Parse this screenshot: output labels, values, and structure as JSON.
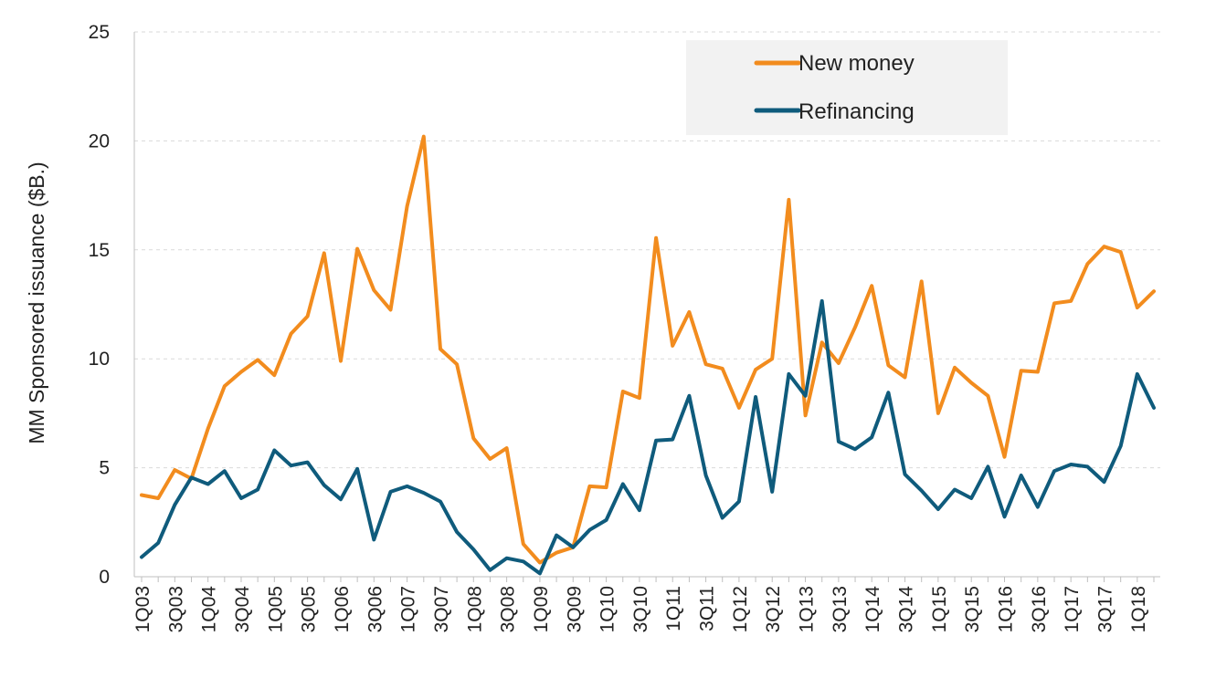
{
  "chart_data": {
    "type": "line",
    "title": "",
    "xlabel": "",
    "ylabel": "MM Sponsored issuance ($B.)",
    "ylim": [
      0,
      25
    ],
    "yticks": [
      0,
      5,
      10,
      15,
      20,
      25
    ],
    "grid": true,
    "legend_position": "top-right",
    "x": [
      "1Q03",
      "2Q03",
      "3Q03",
      "4Q03",
      "1Q04",
      "2Q04",
      "3Q04",
      "4Q04",
      "1Q05",
      "2Q05",
      "3Q05",
      "4Q05",
      "1Q06",
      "2Q06",
      "3Q06",
      "4Q06",
      "1Q07",
      "2Q07",
      "3Q07",
      "4Q07",
      "1Q08",
      "2Q08",
      "3Q08",
      "4Q08",
      "1Q09",
      "2Q09",
      "3Q09",
      "4Q09",
      "1Q10",
      "2Q10",
      "3Q10",
      "4Q10",
      "1Q11",
      "2Q11",
      "3Q11",
      "4Q11",
      "1Q12",
      "2Q12",
      "3Q12",
      "4Q12",
      "1Q13",
      "2Q13",
      "3Q13",
      "4Q13",
      "1Q14",
      "2Q14",
      "3Q14",
      "4Q14",
      "1Q15",
      "2Q15",
      "3Q15",
      "4Q15",
      "1Q16",
      "2Q16",
      "3Q16",
      "4Q16",
      "1Q17",
      "2Q17",
      "3Q17",
      "4Q17",
      "1Q18",
      "2Q18"
    ],
    "x_tick_labels_shown": [
      "1Q03",
      "3Q03",
      "1Q04",
      "3Q04",
      "1Q05",
      "3Q05",
      "1Q06",
      "3Q06",
      "1Q07",
      "3Q07",
      "1Q08",
      "3Q08",
      "1Q09",
      "3Q09",
      "1Q10",
      "3Q10",
      "1Q11",
      "3Q11",
      "1Q12",
      "3Q12",
      "1Q13",
      "3Q13",
      "1Q14",
      "3Q14",
      "1Q15",
      "3Q15",
      "1Q16",
      "3Q16",
      "1Q17",
      "3Q17",
      "1Q18"
    ],
    "series": [
      {
        "name": "New money",
        "color": "#F28C1E",
        "values": [
          3.75,
          3.6,
          4.9,
          4.5,
          6.8,
          8.75,
          9.4,
          9.95,
          9.25,
          11.15,
          11.95,
          14.85,
          9.9,
          15.05,
          13.15,
          12.25,
          17.0,
          20.2,
          10.45,
          9.75,
          6.35,
          5.4,
          5.9,
          1.5,
          0.65,
          1.1,
          1.35,
          4.15,
          4.1,
          8.5,
          8.2,
          15.55,
          10.6,
          12.15,
          9.75,
          9.55,
          7.75,
          9.5,
          10.0,
          17.3,
          7.4,
          10.75,
          9.8,
          11.45,
          13.35,
          9.7,
          9.15,
          13.55,
          7.5,
          9.6,
          8.9,
          8.3,
          5.5,
          9.45,
          9.4,
          12.55,
          12.65,
          14.35,
          15.15,
          14.9,
          12.35,
          13.1
        ]
      },
      {
        "name": "Refinancing",
        "color": "#0F5B7C",
        "values": [
          0.9,
          1.55,
          3.3,
          4.55,
          4.25,
          4.85,
          3.6,
          4.0,
          5.8,
          5.1,
          5.25,
          4.2,
          3.55,
          4.95,
          1.7,
          3.9,
          4.15,
          3.85,
          3.45,
          2.05,
          1.25,
          0.3,
          0.85,
          0.7,
          0.15,
          1.9,
          1.35,
          2.15,
          2.6,
          4.25,
          3.05,
          6.25,
          6.3,
          8.3,
          4.65,
          2.7,
          3.45,
          8.25,
          3.9,
          9.3,
          8.3,
          12.65,
          6.2,
          5.85,
          6.4,
          8.45,
          4.7,
          3.95,
          3.1,
          4.0,
          3.6,
          5.05,
          2.75,
          4.65,
          3.2,
          4.85,
          5.15,
          5.05,
          4.35,
          6.0,
          9.3,
          7.75
        ]
      }
    ]
  }
}
